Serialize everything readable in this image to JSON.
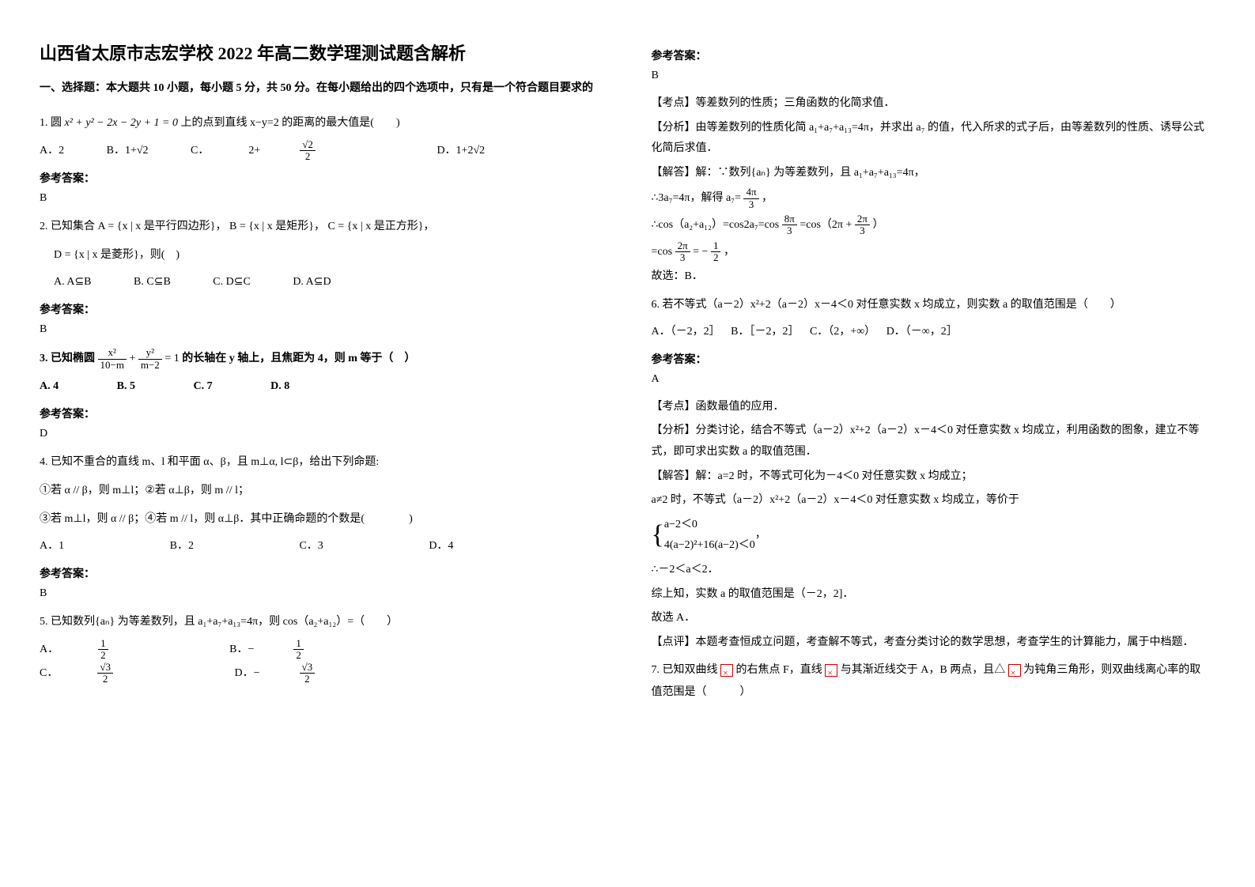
{
  "title": "山西省太原市志宏学校 2022 年高二数学理测试题含解析",
  "section1": "一、选择题：本大题共 10 小题，每小题 5 分，共 50 分。在每小题给出的四个选项中，只有是一个符合题目要求的",
  "q1": {
    "stem_pre": "1. 圆 ",
    "formula": "x² + y² − 2x − 2y + 1 = 0",
    "stem_post": " 上的点到直线 x−y=2 的距离的最大值是(　　)",
    "optA": "A．2",
    "optB": "B．1+√2",
    "optC_pre": "C．",
    "optC_num": "√2",
    "optC_den": "2",
    "optC_prefix": "2+",
    "optD": "D．1+2√2",
    "ans_label": "参考答案：",
    "ans": "B"
  },
  "q2": {
    "stem": "2. 已知集合 A = {x | x 是平行四边形}， B = {x | x 是矩形}， C = {x | x 是正方形}，",
    "stem2": "D = {x | x 是菱形}，则(　)",
    "optA": "A. A⊆B",
    "optB": "B. C⊆B",
    "optC": "C. D⊆C",
    "optD": "D. A⊆D",
    "ans_label": "参考答案：",
    "ans": "B"
  },
  "q3": {
    "stem_pre": "3. 已知椭圆 ",
    "t1n": "x²",
    "t1d": "10−m",
    "plus": " + ",
    "t2n": "y²",
    "t2d": "m−2",
    "eq": " = 1",
    "stem_post": " 的长轴在 y 轴上，且焦距为 4，则 m 等于（　）",
    "optA": "A. 4",
    "optB": "B. 5",
    "optC": "C. 7",
    "optD": "D. 8",
    "ans_label": "参考答案：",
    "ans": "D"
  },
  "q4": {
    "stem": "4. 已知不重合的直线 m、l 和平面 α、β，且 m⊥α, l⊂β，给出下列命题:",
    "line1": "①若 α // β，则 m⊥l；②若 α⊥β，则 m // l；",
    "line2": "③若 m⊥l，则 α // β；④若 m // l，则 α⊥β．其中正确命题的个数是(　　　　)",
    "optA": "A．1",
    "optB": "B．2",
    "optC": "C．3",
    "optD": "D．4",
    "ans_label": "参考答案：",
    "ans": "B"
  },
  "q5": {
    "stem": "5. 已知数列{aₙ} 为等差数列，且 a₁+a₇+a₁₃=4π，则 cos（a₂+a₁₂）=（　　）",
    "optA_pre": "A．",
    "optA_num": "1",
    "optA_den": "2",
    "optB_pre": "B．−",
    "optB_num": "1",
    "optB_den": "2",
    "optC_pre": "C．",
    "optC_num": "√3",
    "optC_den": "2",
    "optD_pre": "D．−",
    "optD_num": "√3",
    "optD_den": "2"
  },
  "right": {
    "ans_label": "参考答案：",
    "q5ans": "B",
    "q5kd": "【考点】等差数列的性质；三角函数的化简求值．",
    "q5fx": "【分析】由等差数列的性质化简 a₁+a₇+a₁₃=4π，并求出 a₇ 的值，代入所求的式子后，由等差数列的性质、诱导公式化简后求值．",
    "q5jd1": "【解答】解：∵数列{aₙ} 为等差数列，且 a₁+a₇+a₁₃=4π，",
    "q5jd2_pre": "∴3a₇=4π，解得 a₇= ",
    "q5jd2_num": "4π",
    "q5jd2_den": "3",
    "q5jd2_post": "，",
    "q5jd3_pre": "∴cos（a₂+a₁₂）=cos2a₇=cos ",
    "q5jd3_n1": "8π",
    "q5jd3_d1": "3",
    "q5jd3_mid": " =cos（2π + ",
    "q5jd3_n2": "2π",
    "q5jd3_d2": "3",
    "q5jd3_post": "）",
    "q5jd4_pre": "=cos ",
    "q5jd4_n": "2π",
    "q5jd4_d": "3",
    "q5jd4_mid": " = −",
    "q5jd4_n2": "1",
    "q5jd4_d2": "2",
    "q5jd4_post": "，",
    "q5gx": "故选：B．",
    "q6stem": "6. 若不等式（a－2）x²+2（a－2）x－4＜0 对任意实数 x 均成立，则实数 a 的取值范围是（　　）",
    "q6A": "A．（－2，2］",
    "q6B": "B．［－2，2］",
    "q6C": "C．（2，+∞）",
    "q6D": "D．（－∞，2］",
    "q6ans_label": "参考答案：",
    "q6ans": "A",
    "q6kd": "【考点】函数最值的应用．",
    "q6fx": "【分析】分类讨论，结合不等式（a－2）x²+2（a－2）x－4＜0 对任意实数 x 均成立，利用函数的图象，建立不等式，即可求出实数 a 的取值范围．",
    "q6jd1": "【解答】解：a=2 时，不等式可化为－4＜0 对任意实数 x 均成立；",
    "q6jd2": "a≠2 时，不等式（a－2）x²+2（a－2）x－4＜0 对任意实数 x 均成立，等价于",
    "q6sys1": "a−2＜0",
    "q6sys2": "4(a−2)²+16(a−2)＜0",
    "q6jd3": "∴－2＜a＜2．",
    "q6jd4": "综上知，实数 a 的取值范围是（－2，2]．",
    "q6gx": "故选 A．",
    "q6dp": "【点评】本题考查恒成立问题，考查解不等式，考查分类讨论的数学思想，考查学生的计算能力，属于中档题．",
    "q7p1": "7. 已知双曲线 ",
    "q7p2": " 的右焦点 F，直线 ",
    "q7p3": " 与其渐近线交于 A，B 两点，且△ ",
    "q7p4": " 为钝角三角形，则双曲线离心率的取值范围是（　　　）"
  }
}
